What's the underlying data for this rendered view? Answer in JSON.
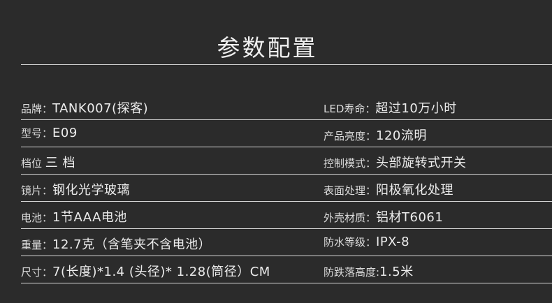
{
  "title": "参数配置",
  "rows": [
    {
      "left": {
        "label": "品牌：",
        "value": "TANK007(探客)"
      },
      "right": {
        "label": "LED寿命：",
        "value": "超过10万小时"
      }
    },
    {
      "left": {
        "label": "型号：",
        "value": "E09"
      },
      "right": {
        "label": "产品亮度：",
        "value": "120流明"
      }
    },
    {
      "left": {
        "label": "档位 ",
        "value": "三 档"
      },
      "right": {
        "label": "控制模式：",
        "value": "头部旋转式开关"
      }
    },
    {
      "left": {
        "label": "镜片：",
        "value": "钢化光学玻璃"
      },
      "right": {
        "label": "表面处理：",
        "value": "阳极氧化处理"
      }
    },
    {
      "left": {
        "label": "电池：",
        "value": "1节AAA电池"
      },
      "right": {
        "label": "外壳材质：",
        "value": "铝材T6061"
      }
    },
    {
      "left": {
        "label": "重量：",
        "value": "12.7克（含笔夹不含电池）"
      },
      "right": {
        "label": "防水等级：",
        "value": "IPX-8"
      }
    },
    {
      "left": {
        "label": "尺寸：",
        "value": "7(长度)*1.4 (头径)* 1.28(筒径）CM"
      },
      "right": {
        "label": "防跌落高度:",
        "value": "1.5米"
      }
    }
  ]
}
